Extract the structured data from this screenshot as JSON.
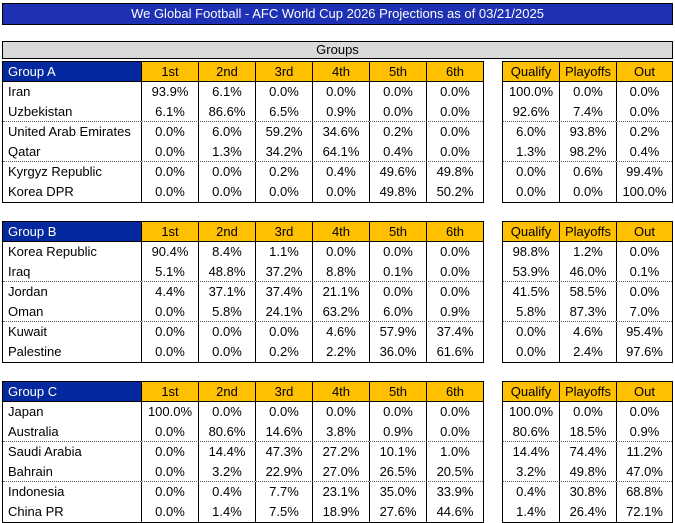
{
  "title": "We Global Football - AFC World Cup 2026 Projections as of 03/21/2025",
  "section_header": "Groups",
  "position_headers": [
    "1st",
    "2nd",
    "3rd",
    "4th",
    "5th",
    "6th"
  ],
  "outcome_headers": [
    "Qualify",
    "Playoffs",
    "Out"
  ],
  "colors": {
    "title_bar": "#1E31B4",
    "group_header": "#04289E",
    "column_header": "#FFC000",
    "section_band": "#D9D9D9"
  },
  "groups": [
    {
      "name": "Group A",
      "teams": [
        {
          "name": "Iran",
          "positions": [
            "93.9%",
            "6.1%",
            "0.0%",
            "0.0%",
            "0.0%",
            "0.0%"
          ],
          "outcomes": [
            "100.0%",
            "0.0%",
            "0.0%"
          ]
        },
        {
          "name": "Uzbekistan",
          "positions": [
            "6.1%",
            "86.6%",
            "6.5%",
            "0.9%",
            "0.0%",
            "0.0%"
          ],
          "outcomes": [
            "92.6%",
            "7.4%",
            "0.0%"
          ]
        },
        {
          "name": "United Arab Emirates",
          "positions": [
            "0.0%",
            "6.0%",
            "59.2%",
            "34.6%",
            "0.2%",
            "0.0%"
          ],
          "outcomes": [
            "6.0%",
            "93.8%",
            "0.2%"
          ]
        },
        {
          "name": "Qatar",
          "positions": [
            "0.0%",
            "1.3%",
            "34.2%",
            "64.1%",
            "0.4%",
            "0.0%"
          ],
          "outcomes": [
            "1.3%",
            "98.2%",
            "0.4%"
          ]
        },
        {
          "name": "Kyrgyz Republic",
          "positions": [
            "0.0%",
            "0.0%",
            "0.2%",
            "0.4%",
            "49.6%",
            "49.8%"
          ],
          "outcomes": [
            "0.0%",
            "0.6%",
            "99.4%"
          ]
        },
        {
          "name": "Korea DPR",
          "positions": [
            "0.0%",
            "0.0%",
            "0.0%",
            "0.0%",
            "49.8%",
            "50.2%"
          ],
          "outcomes": [
            "0.0%",
            "0.0%",
            "100.0%"
          ]
        }
      ]
    },
    {
      "name": "Group B",
      "teams": [
        {
          "name": "Korea Republic",
          "positions": [
            "90.4%",
            "8.4%",
            "1.1%",
            "0.0%",
            "0.0%",
            "0.0%"
          ],
          "outcomes": [
            "98.8%",
            "1.2%",
            "0.0%"
          ]
        },
        {
          "name": "Iraq",
          "positions": [
            "5.1%",
            "48.8%",
            "37.2%",
            "8.8%",
            "0.1%",
            "0.0%"
          ],
          "outcomes": [
            "53.9%",
            "46.0%",
            "0.1%"
          ]
        },
        {
          "name": "Jordan",
          "positions": [
            "4.4%",
            "37.1%",
            "37.4%",
            "21.1%",
            "0.0%",
            "0.0%"
          ],
          "outcomes": [
            "41.5%",
            "58.5%",
            "0.0%"
          ]
        },
        {
          "name": "Oman",
          "positions": [
            "0.0%",
            "5.8%",
            "24.1%",
            "63.2%",
            "6.0%",
            "0.9%"
          ],
          "outcomes": [
            "5.8%",
            "87.3%",
            "7.0%"
          ]
        },
        {
          "name": "Kuwait",
          "positions": [
            "0.0%",
            "0.0%",
            "0.0%",
            "4.6%",
            "57.9%",
            "37.4%"
          ],
          "outcomes": [
            "0.0%",
            "4.6%",
            "95.4%"
          ]
        },
        {
          "name": "Palestine",
          "positions": [
            "0.0%",
            "0.0%",
            "0.2%",
            "2.2%",
            "36.0%",
            "61.6%"
          ],
          "outcomes": [
            "0.0%",
            "2.4%",
            "97.6%"
          ]
        }
      ]
    },
    {
      "name": "Group C",
      "teams": [
        {
          "name": "Japan",
          "positions": [
            "100.0%",
            "0.0%",
            "0.0%",
            "0.0%",
            "0.0%",
            "0.0%"
          ],
          "outcomes": [
            "100.0%",
            "0.0%",
            "0.0%"
          ]
        },
        {
          "name": "Australia",
          "positions": [
            "0.0%",
            "80.6%",
            "14.6%",
            "3.8%",
            "0.9%",
            "0.0%"
          ],
          "outcomes": [
            "80.6%",
            "18.5%",
            "0.9%"
          ]
        },
        {
          "name": "Saudi Arabia",
          "positions": [
            "0.0%",
            "14.4%",
            "47.3%",
            "27.2%",
            "10.1%",
            "1.0%"
          ],
          "outcomes": [
            "14.4%",
            "74.4%",
            "11.2%"
          ]
        },
        {
          "name": "Bahrain",
          "positions": [
            "0.0%",
            "3.2%",
            "22.9%",
            "27.0%",
            "26.5%",
            "20.5%"
          ],
          "outcomes": [
            "3.2%",
            "49.8%",
            "47.0%"
          ]
        },
        {
          "name": "Indonesia",
          "positions": [
            "0.0%",
            "0.4%",
            "7.7%",
            "23.1%",
            "35.0%",
            "33.9%"
          ],
          "outcomes": [
            "0.4%",
            "30.8%",
            "68.8%"
          ]
        },
        {
          "name": "China PR",
          "positions": [
            "0.0%",
            "1.4%",
            "7.5%",
            "18.9%",
            "27.6%",
            "44.6%"
          ],
          "outcomes": [
            "1.4%",
            "26.4%",
            "72.1%"
          ]
        }
      ]
    }
  ]
}
